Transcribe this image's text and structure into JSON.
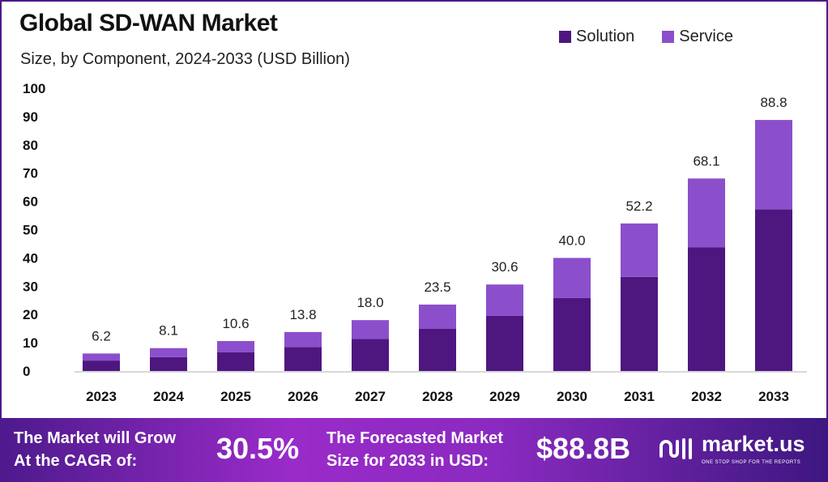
{
  "chart_data": {
    "type": "bar",
    "stacked": true,
    "title": "Global SD-WAN Market",
    "subtitle": "Size, by Component, 2024-2033 (USD Billion)",
    "categories": [
      "2023",
      "2024",
      "2025",
      "2026",
      "2027",
      "2028",
      "2029",
      "2030",
      "2031",
      "2032",
      "2033"
    ],
    "series": [
      {
        "name": "Solution",
        "color": "#4e1780",
        "values": [
          3.7,
          4.9,
          6.6,
          8.5,
          11.4,
          14.9,
          19.5,
          25.8,
          33.3,
          43.8,
          57.2
        ]
      },
      {
        "name": "Service",
        "color": "#8b4fcc",
        "values": [
          2.5,
          3.2,
          4.0,
          5.3,
          6.6,
          8.6,
          11.1,
          14.2,
          18.9,
          24.3,
          31.6
        ]
      }
    ],
    "totals": [
      "6.2",
      "8.1",
      "10.6",
      "13.8",
      "18.0",
      "23.5",
      "30.6",
      "40.0",
      "52.2",
      "68.1",
      "88.8"
    ],
    "yticks": [
      "0",
      "10",
      "20",
      "30",
      "40",
      "50",
      "60",
      "70",
      "80",
      "90",
      "100"
    ],
    "ylim": [
      0,
      100
    ],
    "grid": false,
    "legend_position": "top-right",
    "xlabel": "",
    "ylabel": ""
  },
  "footer": {
    "cagr_label_1": "The Market will Grow",
    "cagr_label_2": "At the CAGR of:",
    "cagr_value": "30.5%",
    "forecast_label_1": "The Forecasted Market",
    "forecast_label_2": "Size for 2033 in USD:",
    "forecast_value": "$88.8B",
    "brand": "market.us",
    "tagline": "ONE STOP SHOP FOR THE REPORTS"
  }
}
